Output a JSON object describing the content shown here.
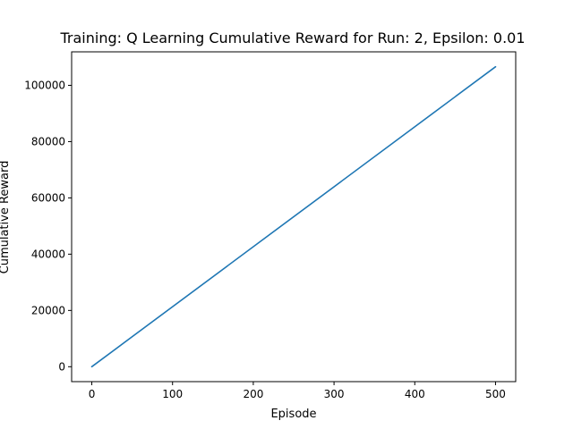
{
  "chart_data": {
    "type": "line",
    "title": "Training: Q Learning Cumulative Reward for Run: 2, Epsilon: 0.01",
    "xlabel": "Episode",
    "ylabel": "Cumulative Reward",
    "xlim": [
      -25,
      525
    ],
    "ylim": [
      -5300,
      111900
    ],
    "x_ticks": [
      0,
      100,
      200,
      300,
      400,
      500
    ],
    "y_ticks": [
      0,
      20000,
      40000,
      60000,
      80000,
      100000
    ],
    "grid": false,
    "legend": "none",
    "series": [
      {
        "color": "#1f77b4",
        "x": [
          0,
          500
        ],
        "y": [
          0,
          106600
        ]
      }
    ]
  }
}
